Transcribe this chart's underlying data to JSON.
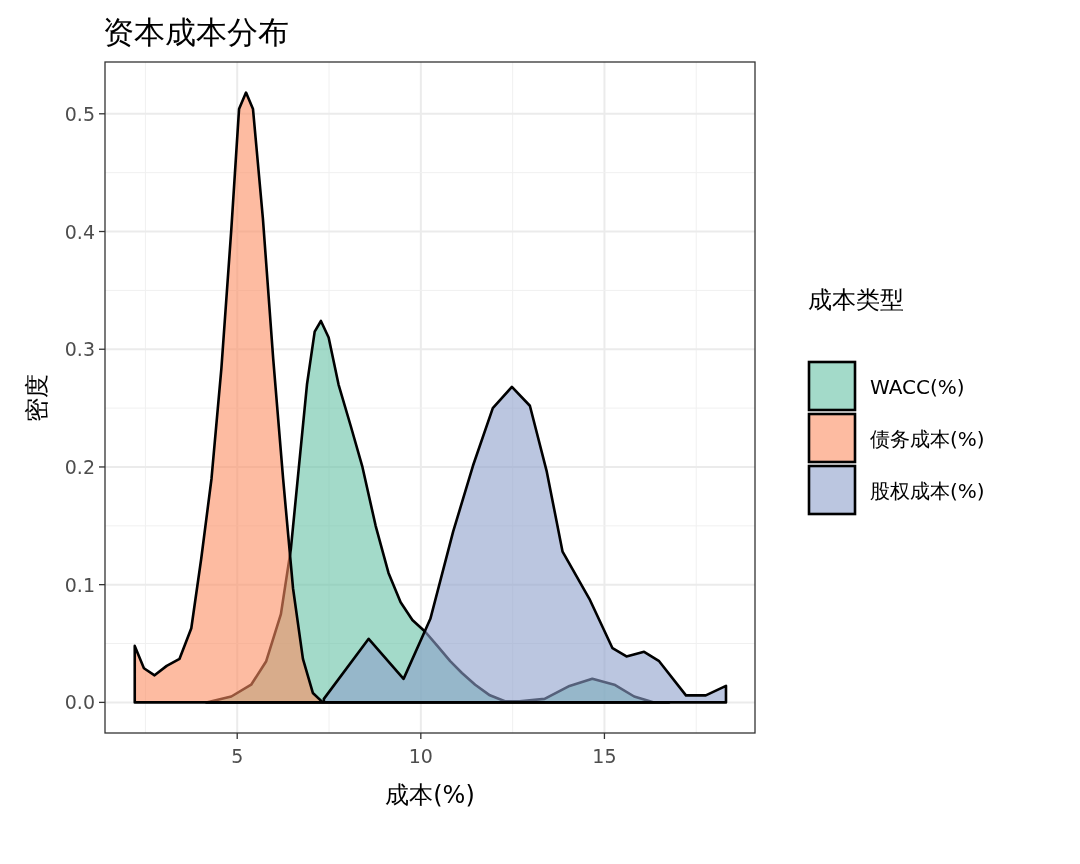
{
  "chart_data": {
    "type": "area",
    "title": "资本成本分布",
    "xlabel": "成本(%)",
    "ylabel": "密度",
    "legend_title": "成本类型",
    "legend": "right",
    "grid": true,
    "xlim": [
      1.4,
      19.1
    ],
    "ylim": [
      -0.026,
      0.544
    ],
    "xticks": [
      5,
      10,
      15
    ],
    "yticks": [
      {
        "value": 0,
        "label": "0.0"
      },
      {
        "value": 0.1,
        "label": "0.1"
      },
      {
        "value": 0.2,
        "label": "0.2"
      },
      {
        "value": 0.3,
        "label": "0.3"
      },
      {
        "value": 0.4,
        "label": "0.4"
      },
      {
        "value": 0.5,
        "label": "0.5"
      }
    ],
    "series": [
      {
        "name": "WACC(%)",
        "color": "#66c2a5",
        "x": [
          4.16,
          4.84,
          5.38,
          5.79,
          6.19,
          6.46,
          6.68,
          6.9,
          7.11,
          7.28,
          7.49,
          7.76,
          8.09,
          8.41,
          8.77,
          9.12,
          9.45,
          9.77,
          10.12,
          10.45,
          10.8,
          11.12,
          11.48,
          11.88,
          12.29,
          12.69,
          13.37,
          14.05,
          14.67,
          15.27,
          15.81,
          16.35,
          16.76
        ],
        "values": [
          0,
          0.005,
          0.015,
          0.035,
          0.075,
          0.13,
          0.2,
          0.27,
          0.315,
          0.324,
          0.31,
          0.27,
          0.235,
          0.2,
          0.15,
          0.11,
          0.085,
          0.07,
          0.06,
          0.048,
          0.035,
          0.025,
          0.015,
          0.006,
          0.001,
          0.001,
          0.003,
          0.014,
          0.02,
          0.015,
          0.005,
          0,
          0
        ]
      },
      {
        "name": "债务成本(%)",
        "color": "#fc8d62",
        "x": [
          2.21,
          2.46,
          2.75,
          3.08,
          3.43,
          3.75,
          4.02,
          4.3,
          4.57,
          4.84,
          5.05,
          5.24,
          5.43,
          5.7,
          5.98,
          6.25,
          6.52,
          6.79,
          7.06,
          7.33
        ],
        "values": [
          0.048,
          0.029,
          0.023,
          0.031,
          0.037,
          0.063,
          0.122,
          0.19,
          0.284,
          0.402,
          0.504,
          0.518,
          0.504,
          0.411,
          0.292,
          0.19,
          0.097,
          0.037,
          0.008,
          0
        ]
      },
      {
        "name": "股权成本(%)",
        "color": "#8da0cb",
        "x": [
          7.36,
          8.58,
          9.53,
          10.26,
          10.88,
          11.42,
          11.96,
          12.48,
          12.97,
          13.43,
          13.86,
          14.59,
          15.22,
          15.6,
          16.08,
          16.49,
          17.22,
          17.76,
          18.31
        ],
        "values": [
          0.003,
          0.054,
          0.02,
          0.071,
          0.145,
          0.201,
          0.25,
          0.268,
          0.252,
          0.196,
          0.128,
          0.088,
          0.046,
          0.039,
          0.043,
          0.035,
          0.006,
          0.006,
          0.014
        ]
      }
    ]
  }
}
